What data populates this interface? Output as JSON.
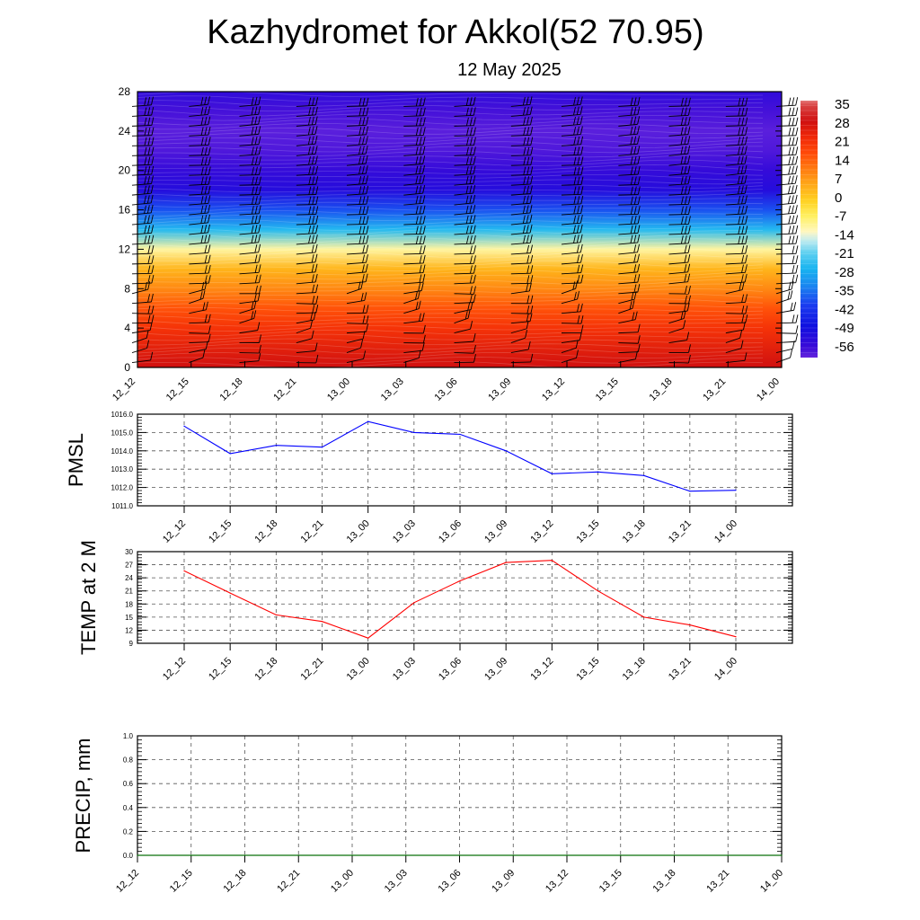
{
  "title": "Kazhydromet for Akkol(52 70.95)",
  "subtitle": "12 May 2025",
  "colors": {
    "pmsl_line": "#0000ff",
    "temp_line": "#ff0000",
    "precip_line": "#008000",
    "grid": "#555555"
  },
  "chart_data": [
    {
      "type": "heatmap",
      "name": "",
      "x": [
        "12_12",
        "12_15",
        "12_18",
        "12_21",
        "13_00",
        "13_03",
        "13_06",
        "13_09",
        "13_12",
        "13_15",
        "13_18",
        "13_21",
        "14_00"
      ],
      "y_ticks": [
        0,
        4,
        8,
        12,
        16,
        20,
        24,
        28
      ],
      "ylim": [
        0,
        28
      ],
      "colorbar": {
        "labels": [
          "35",
          "28",
          "21",
          "14",
          "7",
          "0",
          "-7",
          "-14",
          "-21",
          "-28",
          "-35",
          "-42",
          "-49",
          "-56"
        ],
        "range": [
          -60,
          38
        ]
      },
      "temperature_profile": [
        {
          "level": 0,
          "value": 30
        },
        {
          "level": 4,
          "value": 22
        },
        {
          "level": 6,
          "value": 17
        },
        {
          "level": 8,
          "value": 10
        },
        {
          "level": 10,
          "value": 4
        },
        {
          "level": 12,
          "value": -10
        },
        {
          "level": 14,
          "value": -25
        },
        {
          "level": 16,
          "value": -38
        },
        {
          "level": 18,
          "value": -52
        },
        {
          "level": 20,
          "value": -55
        },
        {
          "level": 22,
          "value": -58
        },
        {
          "level": 24,
          "value": -59
        },
        {
          "level": 26,
          "value": -57
        },
        {
          "level": 28,
          "value": -54
        }
      ],
      "wind_barbs": true
    },
    {
      "type": "line",
      "ylabel": "PMSL",
      "x": [
        "12_12",
        "12_15",
        "12_18",
        "12_21",
        "13_00",
        "13_03",
        "13_06",
        "13_09",
        "13_12",
        "13_15",
        "13_18",
        "13_21",
        "14_00"
      ],
      "y_ticks": [
        "1011.0",
        "1012.0",
        "1013.0",
        "1014.0",
        "1015.0",
        "1016.0"
      ],
      "ylim": [
        1011,
        1016
      ],
      "series": [
        {
          "values": [
            1015.35,
            1013.85,
            1014.3,
            1014.2,
            1015.6,
            1015.0,
            1014.9,
            1014.0,
            1012.75,
            1012.85,
            1012.65,
            1011.8,
            1011.85
          ]
        }
      ],
      "grid": true
    },
    {
      "type": "line",
      "ylabel": "TEMP at 2 M",
      "x": [
        "12_12",
        "12_15",
        "12_18",
        "12_21",
        "13_00",
        "13_03",
        "13_06",
        "13_09",
        "13_12",
        "13_15",
        "13_18",
        "13_21",
        "14_00"
      ],
      "y_ticks": [
        "9",
        "12",
        "15",
        "18",
        "21",
        "24",
        "27",
        "30"
      ],
      "ylim": [
        9,
        30
      ],
      "series": [
        {
          "values": [
            25.6,
            20.5,
            15.5,
            14.0,
            10.2,
            18.3,
            23.3,
            27.5,
            28.0,
            21.0,
            15.0,
            13.2,
            10.5
          ]
        }
      ],
      "grid": true
    },
    {
      "type": "line",
      "ylabel": "PRECIP, mm",
      "x": [
        "12_12",
        "12_15",
        "12_18",
        "12_21",
        "13_00",
        "13_03",
        "13_06",
        "13_09",
        "13_12",
        "13_15",
        "13_18",
        "13_21",
        "14_00"
      ],
      "y_ticks": [
        "0.0",
        "0.2",
        "0.4",
        "0.6",
        "0.8",
        "1.0"
      ],
      "ylim": [
        0,
        1
      ],
      "series": [
        {
          "values": [
            0,
            0,
            0,
            0,
            0,
            0,
            0,
            0,
            0,
            0,
            0,
            0,
            0
          ]
        }
      ],
      "grid": true
    }
  ]
}
